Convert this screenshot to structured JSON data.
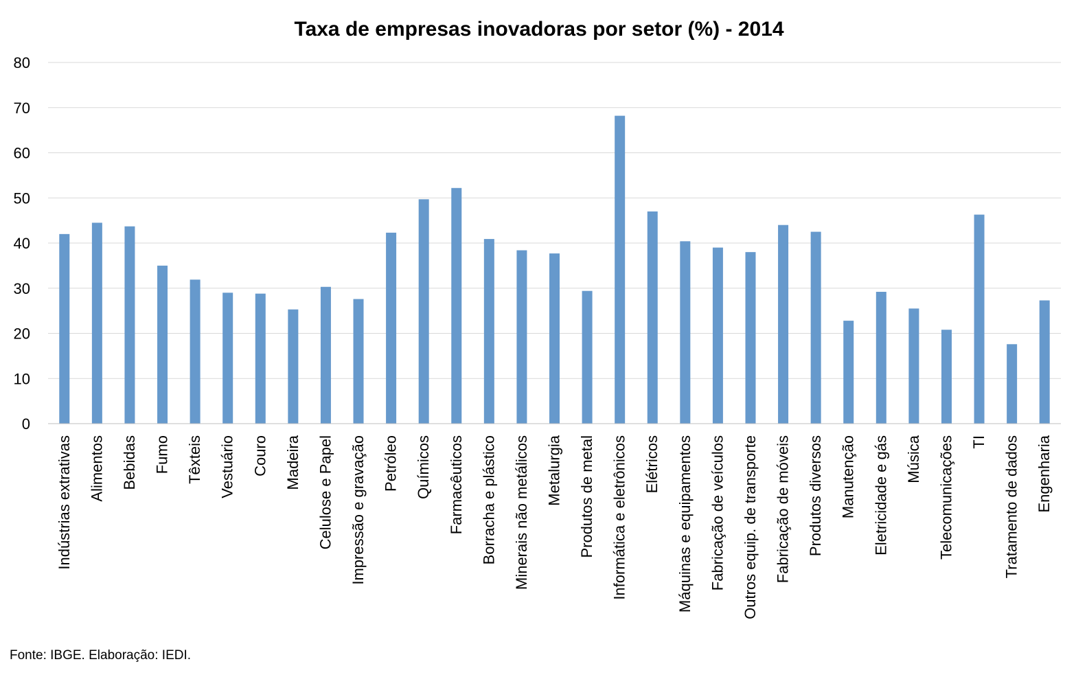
{
  "chart_data": {
    "type": "bar",
    "title": "Taxa de empresas inovadoras por setor (%) - 2014",
    "xlabel": "",
    "ylabel": "",
    "ylim": [
      0,
      80
    ],
    "yticks": [
      0,
      10,
      20,
      30,
      40,
      50,
      60,
      70,
      80
    ],
    "grid": true,
    "legend": "none",
    "bar_color": "#6699cc",
    "categories": [
      "Indústrias extrativas",
      "Alimentos",
      "Bebidas",
      "Fumo",
      "Têxteis",
      "Vestuário",
      "Couro",
      "Madeira",
      "Celulose e Papel",
      "Impressão e gravação",
      "Petróleo",
      "Químicos",
      "Farmacêuticos",
      "Borracha e plástico",
      "Minerais não metálicos",
      "Metalurgia",
      "Produtos de metal",
      "Informática e eletrônicos",
      "Elétricos",
      "Máquinas e equipamentos",
      "Fabricação de veículos",
      "Outros equip. de transporte",
      "Fabricação de móveis",
      "Produtos diversos",
      "Manutenção",
      "Eletricidade e gás",
      "Música",
      "Telecomunicações",
      "TI",
      "Tratamento de dados",
      "Engenharia"
    ],
    "values": [
      42.0,
      44.5,
      43.7,
      35.0,
      31.9,
      29.0,
      28.8,
      25.3,
      30.3,
      27.6,
      42.3,
      49.7,
      52.2,
      40.9,
      38.4,
      37.7,
      29.4,
      68.2,
      47.0,
      40.4,
      39.0,
      38.0,
      44.0,
      42.5,
      22.8,
      29.2,
      25.5,
      20.8,
      46.3,
      17.6,
      27.3
    ]
  },
  "footer": {
    "source": "Fonte: IBGE. Elaboração: IEDI."
  }
}
